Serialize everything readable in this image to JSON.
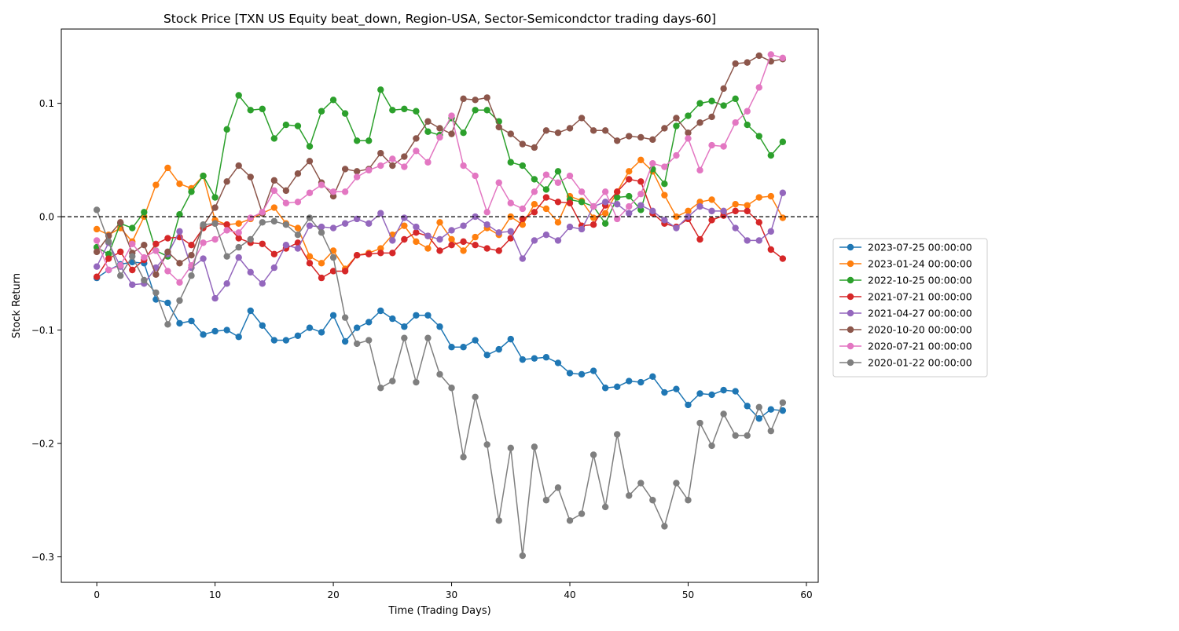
{
  "chart_data": {
    "type": "line",
    "title": "Stock Price [TXN US Equity beat_down, Region-USA, Sector-Semicondctor trading days-60]",
    "xlabel": "Time (Trading Days)",
    "ylabel": "Stock Return",
    "xlim": [
      -3,
      61
    ],
    "ylim": [
      -0.3225,
      0.1655
    ],
    "x_ticks": [
      0,
      10,
      20,
      30,
      40,
      50,
      60
    ],
    "y_ticks": [
      -0.3,
      -0.2,
      -0.1,
      0.0,
      0.1
    ],
    "y_tick_labels": [
      "−0.3",
      "−0.2",
      "−0.1",
      "0.0",
      "0.1"
    ],
    "reference_line": {
      "y": 0,
      "style": "dashed",
      "color": "#000000"
    },
    "legend_position": "outside-right",
    "grid": false,
    "series": [
      {
        "name": "2023-07-25 00:00:00",
        "color": "#1f77b4",
        "values": [
          -0.054,
          -0.047,
          -0.042,
          -0.04,
          -0.041,
          -0.073,
          -0.076,
          -0.094,
          -0.092,
          -0.104,
          -0.101,
          -0.1,
          -0.106,
          -0.083,
          -0.096,
          -0.109,
          -0.109,
          -0.105,
          -0.098,
          -0.102,
          -0.087,
          -0.11,
          -0.098,
          -0.093,
          -0.083,
          -0.09,
          -0.097,
          -0.087,
          -0.087,
          -0.097,
          -0.115,
          -0.115,
          -0.109,
          -0.122,
          -0.117,
          -0.108,
          -0.126,
          -0.125,
          -0.124,
          -0.129,
          -0.138,
          -0.139,
          -0.136,
          -0.151,
          -0.15,
          -0.145,
          -0.146,
          -0.141,
          -0.155,
          -0.152,
          -0.166,
          -0.156,
          -0.157,
          -0.153,
          -0.154,
          -0.167,
          -0.178,
          -0.17,
          -0.171
        ]
      },
      {
        "name": "2023-01-24 00:00:00",
        "color": "#ff7f0e",
        "values": [
          -0.011,
          -0.016,
          -0.01,
          -0.022,
          0.0,
          0.028,
          0.043,
          0.029,
          0.025,
          0.036,
          -0.003,
          -0.007,
          -0.006,
          -0.002,
          0.003,
          0.008,
          -0.006,
          -0.01,
          -0.035,
          -0.041,
          -0.03,
          -0.046,
          -0.034,
          -0.032,
          -0.028,
          -0.016,
          -0.008,
          -0.022,
          -0.028,
          -0.005,
          -0.02,
          -0.03,
          -0.018,
          -0.01,
          -0.016,
          0.0,
          -0.007,
          0.011,
          0.007,
          -0.005,
          0.018,
          0.014,
          -0.001,
          0.003,
          0.022,
          0.04,
          0.05,
          0.04,
          0.019,
          0.0,
          0.005,
          0.013,
          0.015,
          0.004,
          0.011,
          0.01,
          0.017,
          0.018,
          -0.001
        ]
      },
      {
        "name": "2022-10-25 00:00:00",
        "color": "#2ca02c",
        "values": [
          -0.027,
          -0.033,
          -0.006,
          -0.01,
          0.004,
          -0.03,
          -0.035,
          0.002,
          0.022,
          0.036,
          0.017,
          0.077,
          0.107,
          0.094,
          0.095,
          0.069,
          0.081,
          0.08,
          0.062,
          0.093,
          0.103,
          0.091,
          0.067,
          0.067,
          0.112,
          0.094,
          0.095,
          0.093,
          0.075,
          0.072,
          0.087,
          0.074,
          0.094,
          0.094,
          0.084,
          0.048,
          0.045,
          0.033,
          0.024,
          0.04,
          0.015,
          0.013,
          0.009,
          -0.006,
          0.017,
          0.018,
          0.006,
          0.042,
          0.029,
          0.08,
          0.089,
          0.1,
          0.102,
          0.098,
          0.104,
          0.081,
          0.071,
          0.054,
          0.066
        ]
      },
      {
        "name": "2021-07-21 00:00:00",
        "color": "#d62728",
        "values": [
          -0.053,
          -0.037,
          -0.031,
          -0.047,
          -0.038,
          -0.024,
          -0.019,
          -0.018,
          -0.025,
          -0.01,
          -0.006,
          -0.007,
          -0.019,
          -0.023,
          -0.024,
          -0.033,
          -0.028,
          -0.023,
          -0.041,
          -0.054,
          -0.048,
          -0.048,
          -0.034,
          -0.033,
          -0.032,
          -0.032,
          -0.02,
          -0.014,
          -0.017,
          -0.03,
          -0.025,
          -0.022,
          -0.025,
          -0.028,
          -0.03,
          -0.019,
          -0.002,
          0.004,
          0.017,
          0.013,
          0.012,
          -0.008,
          -0.007,
          0.01,
          0.022,
          0.033,
          0.031,
          0.003,
          -0.006,
          -0.009,
          -0.002,
          -0.02,
          -0.003,
          0.001,
          0.005,
          0.005,
          -0.005,
          -0.029,
          -0.037
        ]
      },
      {
        "name": "2021-04-27 00:00:00",
        "color": "#9467bd",
        "values": [
          -0.044,
          -0.023,
          -0.044,
          -0.06,
          -0.059,
          -0.045,
          -0.033,
          -0.013,
          -0.045,
          -0.037,
          -0.072,
          -0.059,
          -0.036,
          -0.049,
          -0.059,
          -0.045,
          -0.025,
          -0.028,
          -0.008,
          -0.009,
          -0.01,
          -0.006,
          -0.002,
          -0.006,
          0.003,
          -0.021,
          -0.001,
          -0.009,
          -0.017,
          -0.02,
          -0.012,
          -0.008,
          0.0,
          -0.007,
          -0.014,
          -0.013,
          -0.037,
          -0.021,
          -0.016,
          -0.021,
          -0.009,
          -0.011,
          0.009,
          0.013,
          0.011,
          0.003,
          0.01,
          0.005,
          -0.003,
          -0.01,
          0.0,
          0.009,
          0.005,
          0.005,
          -0.01,
          -0.021,
          -0.021,
          -0.013,
          0.021
        ]
      },
      {
        "name": "2020-10-20 00:00:00",
        "color": "#8c564b",
        "values": [
          -0.031,
          -0.017,
          -0.005,
          -0.032,
          -0.025,
          -0.051,
          -0.031,
          -0.041,
          -0.034,
          -0.008,
          0.008,
          0.031,
          0.045,
          0.035,
          0.003,
          0.032,
          0.023,
          0.038,
          0.049,
          0.03,
          0.018,
          0.042,
          0.04,
          0.042,
          0.056,
          0.045,
          0.053,
          0.069,
          0.084,
          0.078,
          0.073,
          0.104,
          0.103,
          0.105,
          0.079,
          0.073,
          0.064,
          0.061,
          0.076,
          0.074,
          0.078,
          0.087,
          0.076,
          0.076,
          0.067,
          0.071,
          0.07,
          0.068,
          0.078,
          0.087,
          0.074,
          0.083,
          0.088,
          0.113,
          0.135,
          0.136,
          0.142,
          0.137,
          0.139
        ]
      },
      {
        "name": "2020-07-21 00:00:00",
        "color": "#e377c2",
        "values": [
          -0.021,
          -0.047,
          -0.043,
          -0.024,
          -0.036,
          -0.03,
          -0.048,
          -0.058,
          -0.043,
          -0.023,
          -0.02,
          -0.012,
          -0.014,
          -0.001,
          0.004,
          0.023,
          0.012,
          0.013,
          0.021,
          0.028,
          0.022,
          0.022,
          0.035,
          0.041,
          0.045,
          0.051,
          0.044,
          0.058,
          0.048,
          0.07,
          0.089,
          0.045,
          0.036,
          0.004,
          0.03,
          0.012,
          0.007,
          0.022,
          0.037,
          0.03,
          0.036,
          0.022,
          0.009,
          0.022,
          -0.002,
          0.009,
          0.02,
          0.047,
          0.044,
          0.054,
          0.069,
          0.041,
          0.063,
          0.062,
          0.083,
          0.093,
          0.114,
          0.143,
          0.14
        ]
      },
      {
        "name": "2020-01-22 00:00:00",
        "color": "#7f7f7f",
        "values": [
          0.006,
          -0.022,
          -0.052,
          -0.035,
          -0.056,
          -0.067,
          -0.095,
          -0.074,
          -0.052,
          -0.007,
          -0.006,
          -0.035,
          -0.027,
          -0.02,
          -0.005,
          -0.004,
          -0.007,
          -0.016,
          -0.001,
          -0.014,
          -0.036,
          -0.089,
          -0.112,
          -0.109,
          -0.151,
          -0.145,
          -0.107,
          -0.146,
          -0.107,
          -0.139,
          -0.151,
          -0.212,
          -0.159,
          -0.201,
          -0.268,
          -0.204,
          -0.299,
          -0.203,
          -0.25,
          -0.239,
          -0.268,
          -0.262,
          -0.21,
          -0.256,
          -0.192,
          -0.246,
          -0.235,
          -0.25,
          -0.273,
          -0.235,
          -0.25,
          -0.182,
          -0.202,
          -0.174,
          -0.193,
          -0.193,
          -0.168,
          -0.189,
          -0.164
        ]
      }
    ]
  }
}
